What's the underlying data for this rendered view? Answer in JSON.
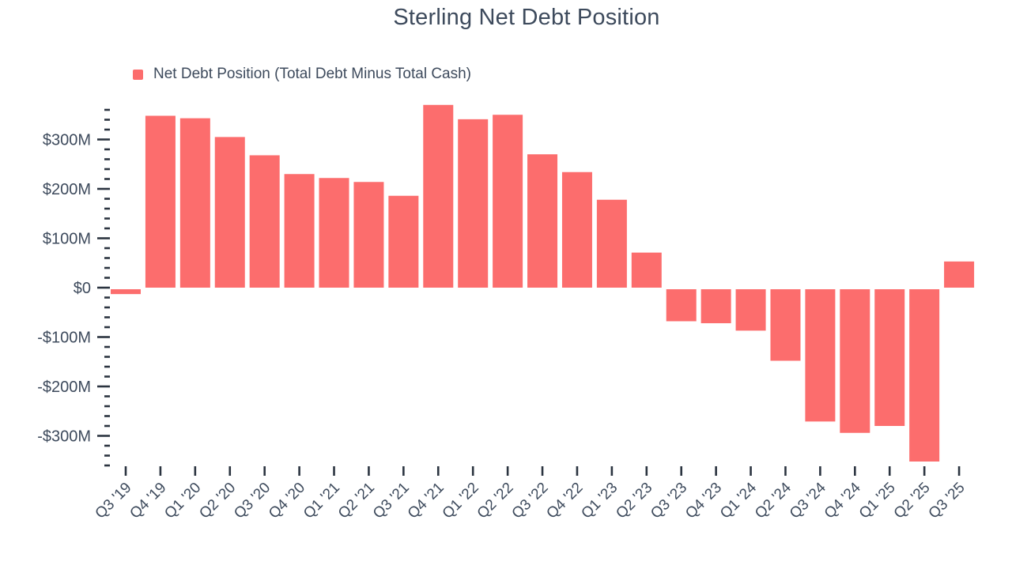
{
  "chart_data": {
    "type": "bar",
    "title": "Sterling Net Debt Position",
    "legend_label": "Net Debt Position (Total Debt Minus Total Cash)",
    "series_name": "Net Debt Position (Total Debt Minus Total Cash)",
    "categories": [
      "Q3 '19",
      "Q4 '19",
      "Q1 '20",
      "Q2 '20",
      "Q3 '20",
      "Q4 '20",
      "Q1 '21",
      "Q2 '21",
      "Q3 '21",
      "Q4 '21",
      "Q1 '22",
      "Q2 '22",
      "Q3 '22",
      "Q4 '22",
      "Q1 '23",
      "Q2 '23",
      "Q3 '23",
      "Q4 '23",
      "Q1 '24",
      "Q2 '24",
      "Q3 '24",
      "Q4 '24",
      "Q1 '25",
      "Q2 '25",
      "Q3 '25"
    ],
    "values": [
      -13,
      348,
      343,
      305,
      268,
      230,
      222,
      214,
      186,
      370,
      341,
      350,
      270,
      234,
      178,
      71,
      -68,
      -72,
      -87,
      -148,
      -271,
      -294,
      -280,
      -352,
      53
    ],
    "values_unit": "millions USD",
    "xlabel": "",
    "ylabel": "",
    "y_axis": {
      "labels": [
        "$300M",
        "$200M",
        "$100M",
        "$0",
        "-$100M",
        "-$200M",
        "-$300M"
      ],
      "major_values": [
        300,
        200,
        100,
        0,
        -100,
        -200,
        -300
      ],
      "minor_step": 20,
      "tick_min": -360,
      "tick_max": 360
    },
    "grid": "off",
    "legend_position": "top-left",
    "colors": {
      "bar": "#fc6d6d",
      "text": "#3d4a5c",
      "tick": "#2b3440"
    }
  }
}
